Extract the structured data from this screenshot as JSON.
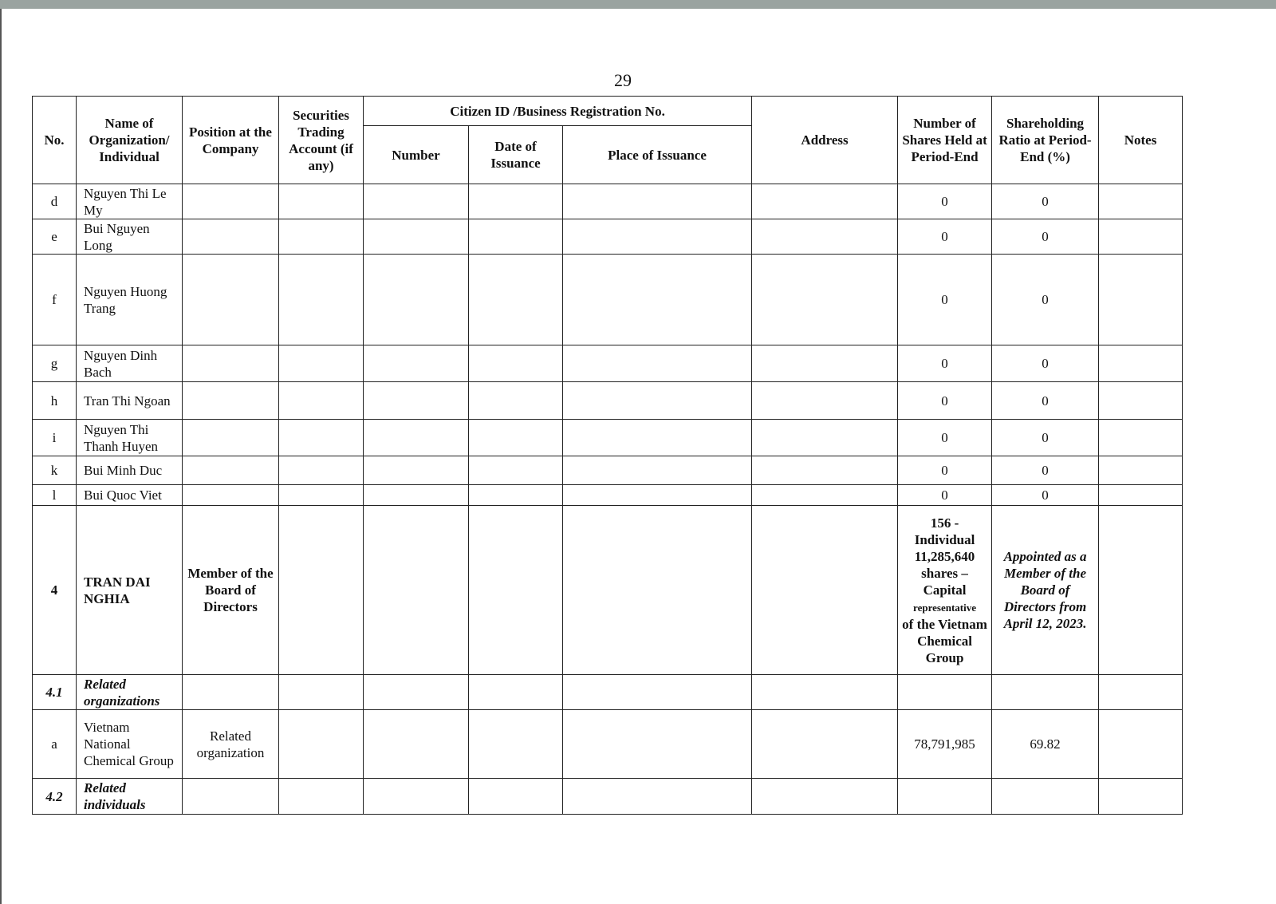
{
  "page_number": "29",
  "headers": {
    "no": "No.",
    "name": "Name of Organization/ Individual",
    "position": "Position at the Company",
    "securities": "Securities Trading Account (if any)",
    "citizen_id": "Citizen ID /Business Registration No.",
    "number": "Number",
    "date": "Date of Issuance",
    "place": "Place of Issuance",
    "address": "Address",
    "shares": "Number of Shares Held at Period-End",
    "ratio": "Shareholding Ratio at Period-End (%)",
    "notes": "Notes"
  },
  "rows": [
    {
      "no": "d",
      "name": "Nguyen Thi Le My",
      "shares": "0",
      "ratio": "0"
    },
    {
      "no": "e",
      "name": "Bui Nguyen Long",
      "shares": "0",
      "ratio": "0"
    },
    {
      "no": "f",
      "name": "Nguyen Huong Trang",
      "shares": "0",
      "ratio": "0"
    },
    {
      "no": "g",
      "name": "Nguyen Dinh Bach",
      "shares": "0",
      "ratio": "0"
    },
    {
      "no": "h",
      "name": "Tran Thi Ngoan",
      "shares": "0",
      "ratio": "0"
    },
    {
      "no": "i",
      "name": "Nguyen Thi Thanh Huyen",
      "shares": "0",
      "ratio": "0"
    },
    {
      "no": "k",
      "name": "Bui Minh Duc",
      "shares": "0",
      "ratio": "0"
    },
    {
      "no": "l",
      "name": "Bui Quoc Viet",
      "shares": "0",
      "ratio": "0"
    }
  ],
  "row4": {
    "no": "4",
    "name": "TRAN DAI NGHIA",
    "position": "Member of the Board of Directors",
    "shares_1": "156 - Individual 11,285,640 shares – Capital",
    "shares_2": "representative",
    "shares_3": "of the Vietnam Chemical Group",
    "ratio": "Appointed as a Member of the Board of Directors from April 12, 2023."
  },
  "row41": {
    "no": "4.1",
    "name": "Related organizations"
  },
  "rowa": {
    "no": "a",
    "name": "Vietnam National Chemical Group",
    "position": "Related organization",
    "shares": "78,791,985",
    "ratio": "69.82"
  },
  "row42": {
    "no": "4.2",
    "name": "Related individuals"
  }
}
